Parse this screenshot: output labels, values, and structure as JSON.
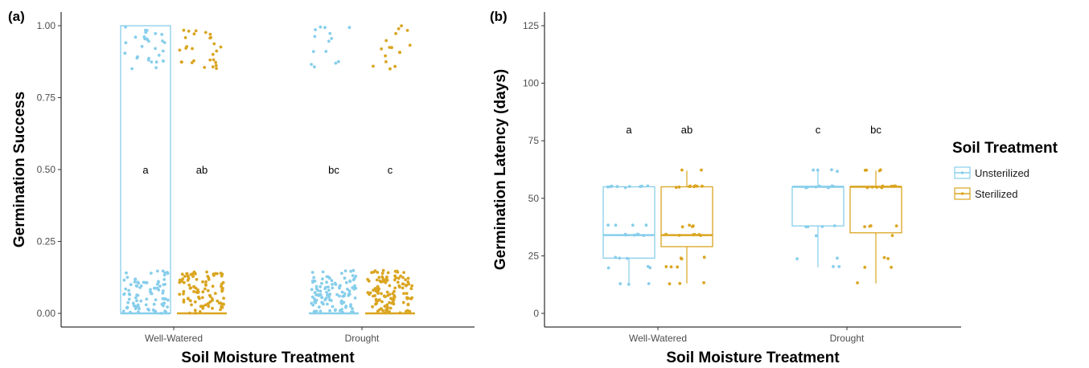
{
  "colors": {
    "Unsterilized": "#87ceeb",
    "Sterilized": "#daa520"
  },
  "legend": {
    "title": "Soil Treatment",
    "items": [
      "Unsterilized",
      "Sterilized"
    ]
  },
  "chart_data": [
    {
      "type": "box",
      "panel_label": "(a)",
      "title": "",
      "xlabel": "Soil Moisture Treatment",
      "ylabel": "Germination Success",
      "categories": [
        "Well-Watered",
        "Drought"
      ],
      "ylim": [
        0,
        1
      ],
      "yticks": [
        "0.00",
        "0.25",
        "0.50",
        "0.75",
        "1.00"
      ],
      "grid": false,
      "jitter_points": true,
      "series": [
        {
          "name": "Unsterilized",
          "boxes": [
            {
              "min": 0,
              "q1": 0,
              "median": 0,
              "q3": 1,
              "max": 1
            },
            {
              "min": 0,
              "q1": 0,
              "median": 0,
              "q3": 0,
              "max": 0
            }
          ]
        },
        {
          "name": "Sterilized",
          "boxes": [
            {
              "min": 0,
              "q1": 0,
              "median": 0,
              "q3": 0,
              "max": 0
            },
            {
              "min": 0,
              "q1": 0,
              "median": 0,
              "q3": 0,
              "max": 0
            }
          ]
        }
      ],
      "letters": [
        {
          "category": "Well-Watered",
          "series": "Unsterilized",
          "text": "a",
          "y": 0.5
        },
        {
          "category": "Well-Watered",
          "series": "Sterilized",
          "text": "ab",
          "y": 0.5
        },
        {
          "category": "Drought",
          "series": "Unsterilized",
          "text": "bc",
          "y": 0.5
        },
        {
          "category": "Drought",
          "series": "Sterilized",
          "text": "c",
          "y": 0.5
        }
      ]
    },
    {
      "type": "box",
      "panel_label": "(b)",
      "title": "",
      "xlabel": "Soil Moisture Treatment",
      "ylabel": "Germination Latency (days)",
      "categories": [
        "Well-Watered",
        "Drought"
      ],
      "ylim": [
        0,
        125
      ],
      "yticks": [
        "0",
        "25",
        "50",
        "75",
        "100",
        "125"
      ],
      "grid": false,
      "jitter_points": true,
      "series": [
        {
          "name": "Unsterilized",
          "boxes": [
            {
              "min": 13,
              "q1": 24,
              "median": 34,
              "q3": 55,
              "max": 55
            },
            {
              "min": 20,
              "q1": 38,
              "median": 55,
              "q3": 55,
              "max": 62
            }
          ]
        },
        {
          "name": "Sterilized",
          "boxes": [
            {
              "min": 13,
              "q1": 29,
              "median": 34,
              "q3": 55,
              "max": 62
            },
            {
              "min": 13,
              "q1": 35,
              "median": 55,
              "q3": 55,
              "max": 62
            }
          ]
        }
      ],
      "letters": [
        {
          "category": "Well-Watered",
          "series": "Unsterilized",
          "text": "a",
          "y": 80
        },
        {
          "category": "Well-Watered",
          "series": "Sterilized",
          "text": "ab",
          "y": 80
        },
        {
          "category": "Drought",
          "series": "Unsterilized",
          "text": "c",
          "y": 80
        },
        {
          "category": "Drought",
          "series": "Sterilized",
          "text": "bc",
          "y": 80
        }
      ]
    }
  ]
}
